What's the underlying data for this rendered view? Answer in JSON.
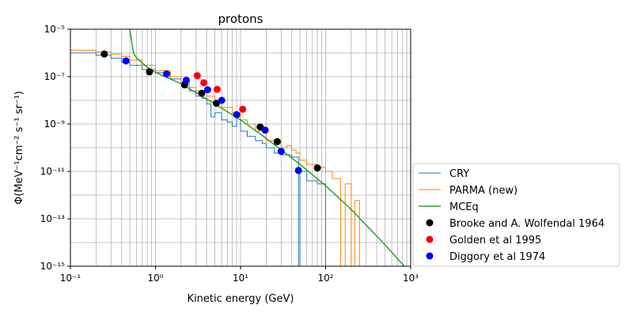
{
  "chart_data": {
    "type": "line",
    "title": "protons",
    "xlabel": "Kinetic energy (GeV)",
    "ylabel": "Φ(MeV⁻¹cm⁻² s⁻¹ sr⁻¹)",
    "xscale": "log",
    "yscale": "log",
    "xlim": [
      0.1,
      1000
    ],
    "ylim": [
      1e-15,
      1e-05
    ],
    "grid": true,
    "legend_position": "right, outside plot",
    "x_tick_labels": [
      "10⁻¹",
      "10⁰",
      "10¹",
      "10²",
      "10³"
    ],
    "y_tick_labels": [
      "10⁻¹⁵",
      "10⁻¹³",
      "10⁻¹¹",
      "10⁻⁹",
      "10⁻⁷",
      "10⁻⁵"
    ],
    "series": [
      {
        "name": "CRY",
        "kind": "step",
        "color": "#1f77b4",
        "x": [
          0.1,
          0.2,
          0.3,
          0.4,
          0.5,
          0.7,
          1.0,
          1.5,
          2.0,
          2.5,
          3.0,
          3.5,
          4.0,
          4.5,
          5.0,
          6.0,
          7.0,
          8.0,
          9.0,
          10,
          12,
          15,
          18,
          20,
          25,
          30,
          40,
          48,
          50,
          60,
          80,
          100,
          1000
        ],
        "y": [
          1e-06,
          8e-07,
          6e-07,
          4e-07,
          3e-07,
          2e-07,
          1.5e-07,
          8e-08,
          5e-08,
          2.5e-08,
          1.5e-08,
          1.2e-08,
          7e-09,
          2e-09,
          3e-09,
          1.5e-09,
          1.2e-09,
          8e-10,
          2e-09,
          5e-10,
          3e-10,
          2e-10,
          1.5e-10,
          1e-10,
          6e-11,
          5e-11,
          4e-11,
          1e-15,
          1e-11,
          4e-12,
          3e-12,
          1e-15,
          1e-15
        ]
      },
      {
        "name": "PARMA (new)",
        "kind": "step",
        "color": "#ff7f0e",
        "x": [
          0.1,
          0.2,
          0.3,
          0.4,
          0.5,
          0.7,
          1.0,
          1.5,
          2.0,
          2.5,
          3.0,
          4.0,
          5.0,
          6.0,
          8.0,
          10,
          12,
          15,
          20,
          25,
          30,
          35,
          40,
          45,
          50,
          60,
          80,
          100,
          120,
          150,
          170,
          200,
          220,
          250,
          270,
          1000
        ],
        "y": [
          1.3e-06,
          1.1e-06,
          9e-07,
          7e-07,
          5e-07,
          3e-07,
          1.8e-07,
          1e-07,
          6e-08,
          3.5e-08,
          2.5e-08,
          1.5e-08,
          8e-09,
          5e-09,
          3e-09,
          1.5e-09,
          1e-09,
          5e-10,
          2e-10,
          2e-10,
          1e-10,
          1.2e-10,
          8e-11,
          6e-11,
          3e-11,
          2e-11,
          1.5e-11,
          1e-11,
          5e-12,
          1e-15,
          3e-12,
          1e-15,
          6e-13,
          1e-15,
          1e-15,
          1e-15
        ]
      },
      {
        "name": "MCEq",
        "kind": "line",
        "color": "#2ca02c",
        "x": [
          0.5,
          0.55,
          0.6,
          0.8,
          1.0,
          2.0,
          5.0,
          10,
          20,
          50,
          100,
          200,
          500,
          1000
        ],
        "y": [
          1e-05,
          1e-06,
          6e-07,
          2.5e-07,
          1.5e-07,
          5e-08,
          7e-09,
          1.5e-09,
          2.5e-10,
          2e-11,
          2.5e-12,
          2.5e-13,
          8e-15,
          5e-16
        ]
      },
      {
        "name": "Brooke and A. Wolfendal 1964",
        "kind": "points",
        "color": "#000000",
        "x": [
          0.25,
          0.85,
          2.2,
          3.5,
          5.2,
          17,
          27,
          80
        ],
        "y": [
          9e-07,
          1.6e-07,
          4.5e-08,
          2e-08,
          7.5e-09,
          7.5e-10,
          1.8e-10,
          1.4e-11
        ]
      },
      {
        "name": "Golden et al 1995",
        "kind": "points",
        "color": "#ff0000",
        "x": [
          3.1,
          3.7,
          5.3,
          10.6
        ],
        "y": [
          1.1e-07,
          5.5e-08,
          2.9e-08,
          4.2e-09
        ]
      },
      {
        "name": "Diggory et al 1974",
        "kind": "points",
        "color": "#0000ff",
        "x": [
          0.45,
          1.35,
          2.3,
          4.1,
          6.0,
          9.0,
          19.5,
          30,
          48
        ],
        "y": [
          4.6e-07,
          1.3e-07,
          7e-08,
          2.8e-08,
          1e-08,
          2.5e-09,
          5.5e-10,
          7e-11,
          1.1e-11
        ]
      }
    ]
  }
}
